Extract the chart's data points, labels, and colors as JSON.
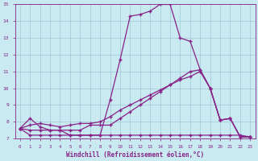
{
  "xlabel": "Windchill (Refroidissement éolien,°C)",
  "xlim": [
    -0.5,
    23.5
  ],
  "ylim": [
    7,
    15
  ],
  "yticks": [
    7,
    8,
    9,
    10,
    11,
    12,
    13,
    14,
    15
  ],
  "xticks": [
    0,
    1,
    2,
    3,
    4,
    5,
    6,
    7,
    8,
    9,
    10,
    11,
    12,
    13,
    14,
    15,
    16,
    17,
    18,
    19,
    20,
    21,
    22,
    23
  ],
  "background_color": "#c8eaf0",
  "grid_color": "#a0c8d8",
  "line_color": "#882288",
  "series": [
    {
      "x": [
        0,
        1,
        2,
        3,
        4,
        5,
        6,
        7,
        8,
        9,
        10,
        11,
        12,
        13,
        14,
        15,
        16,
        17,
        18,
        19,
        20,
        21,
        22,
        23
      ],
      "y": [
        7.6,
        8.2,
        7.7,
        7.5,
        7.5,
        7.2,
        7.2,
        7.2,
        7.2,
        9.3,
        11.7,
        14.3,
        14.4,
        14.6,
        15.0,
        15.0,
        13.0,
        12.8,
        11.1,
        10.0,
        8.1,
        8.2,
        7.1,
        7.1
      ]
    },
    {
      "x": [
        0,
        1,
        2,
        3,
        4,
        5,
        6,
        7,
        8,
        9,
        10,
        11,
        12,
        13,
        14,
        15,
        16,
        17,
        18,
        19,
        20,
        21,
        22,
        23
      ],
      "y": [
        7.6,
        7.2,
        7.2,
        7.2,
        7.2,
        7.2,
        7.2,
        7.2,
        7.2,
        7.2,
        7.2,
        7.2,
        7.2,
        7.2,
        7.2,
        7.2,
        7.2,
        7.2,
        7.2,
        7.2,
        7.2,
        7.2,
        7.2,
        7.1
      ]
    },
    {
      "x": [
        0,
        1,
        2,
        3,
        4,
        5,
        6,
        7,
        8,
        9,
        10,
        11,
        12,
        13,
        14,
        15,
        16,
        17,
        18,
        19,
        20,
        21,
        22,
        23
      ],
      "y": [
        7.6,
        7.8,
        7.9,
        7.8,
        7.7,
        7.8,
        7.9,
        7.9,
        8.0,
        8.3,
        8.7,
        9.0,
        9.3,
        9.6,
        9.9,
        10.2,
        10.5,
        10.7,
        11.0,
        10.0,
        8.1,
        8.2,
        7.1,
        7.1
      ]
    },
    {
      "x": [
        0,
        1,
        2,
        3,
        4,
        5,
        6,
        7,
        8,
        9,
        10,
        11,
        12,
        13,
        14,
        15,
        16,
        17,
        18,
        19,
        20,
        21,
        22,
        23
      ],
      "y": [
        7.6,
        7.5,
        7.5,
        7.5,
        7.5,
        7.5,
        7.5,
        7.8,
        7.8,
        7.8,
        8.2,
        8.6,
        9.0,
        9.4,
        9.8,
        10.2,
        10.6,
        11.0,
        11.1,
        10.0,
        8.1,
        8.2,
        7.1,
        7.1
      ]
    }
  ]
}
